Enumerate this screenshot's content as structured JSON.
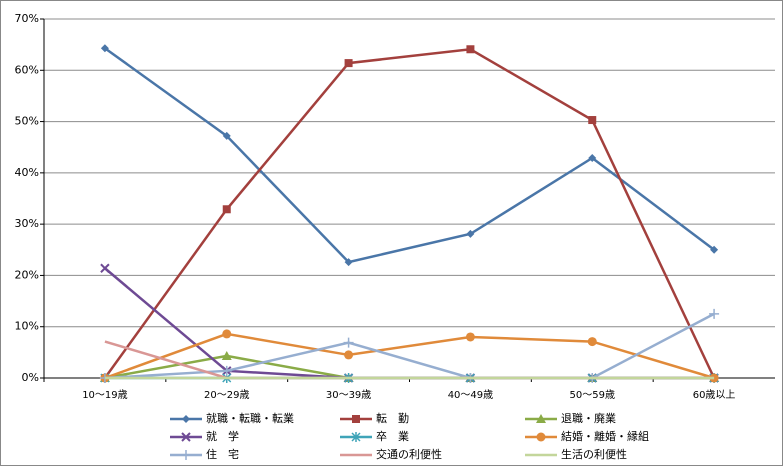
{
  "chart_data": {
    "type": "line",
    "categories": [
      "10〜19歳",
      "20〜29歳",
      "30〜39歳",
      "40〜49歳",
      "50〜59歳",
      "60歳以上"
    ],
    "ylim": [
      0,
      70
    ],
    "yticks": [
      {
        "value": 0,
        "label": "0%"
      },
      {
        "value": 10,
        "label": "10%"
      },
      {
        "value": 20,
        "label": "20%"
      },
      {
        "value": 30,
        "label": "30%"
      },
      {
        "value": 40,
        "label": "40%"
      },
      {
        "value": 50,
        "label": "50%"
      },
      {
        "value": 60,
        "label": "60%"
      },
      {
        "value": 70,
        "label": "70%"
      }
    ],
    "grid": true,
    "legend": "bottom",
    "series": [
      {
        "name": "就職・転職・転業",
        "color": "#4a76a8",
        "marker": "diamond",
        "values": [
          64.3,
          47.2,
          22.6,
          28.1,
          42.9,
          25.0
        ]
      },
      {
        "name": "転　勤",
        "color": "#a3403d",
        "marker": "square",
        "values": [
          0,
          32.9,
          61.4,
          64.1,
          50.3,
          0
        ]
      },
      {
        "name": "退職・廃業",
        "color": "#8aab47",
        "marker": "triangle",
        "values": [
          0,
          4.3,
          0,
          0,
          0,
          0
        ]
      },
      {
        "name": "就　学",
        "color": "#6e4a94",
        "marker": "x",
        "values": [
          21.4,
          1.4,
          0,
          0,
          0,
          0
        ]
      },
      {
        "name": "卒　業",
        "color": "#3fa4b8",
        "marker": "star",
        "values": [
          0,
          0,
          0,
          0,
          0,
          0
        ]
      },
      {
        "name": "結婚・離婚・縁組",
        "color": "#e08a3a",
        "marker": "circle",
        "values": [
          0,
          8.6,
          4.5,
          8.0,
          7.1,
          0
        ]
      },
      {
        "name": "住　宅",
        "color": "#96aed0",
        "marker": "plus",
        "values": [
          0,
          1.4,
          6.9,
          0,
          0,
          12.5
        ]
      },
      {
        "name": "交通の利便性",
        "color": "#d99795",
        "marker": "none",
        "values": [
          7.1,
          0,
          0,
          0,
          0,
          0
        ]
      },
      {
        "name": "生活の利便性",
        "color": "#c3d69b",
        "marker": "none",
        "values": [
          0,
          0,
          0,
          0,
          0,
          0
        ]
      }
    ]
  }
}
